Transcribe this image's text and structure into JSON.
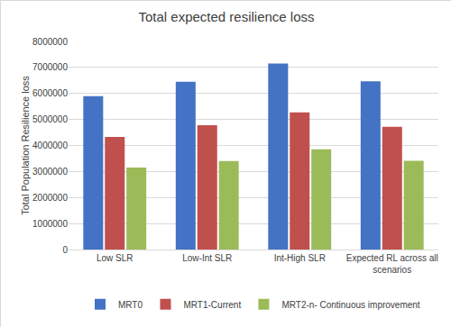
{
  "chart_data": {
    "type": "bar",
    "title": "Total expected resilience loss",
    "y_label": "Total Population Resilience loss",
    "categories": [
      "Low SLR",
      "Low-Int SLR",
      "Int-High SLR",
      "Expected RL across all scenarios"
    ],
    "series": [
      {
        "name": "MRT0",
        "color": "#4472c4",
        "values": [
          5900000,
          6450000,
          7150000,
          6470000
        ]
      },
      {
        "name": "MRT1-Current",
        "color": "#c0504d",
        "values": [
          4330000,
          4780000,
          5270000,
          4720000
        ]
      },
      {
        "name": "MRT2-n- Continuous improvement",
        "color": "#9bbb59",
        "values": [
          3150000,
          3400000,
          3850000,
          3410000
        ]
      }
    ],
    "ylim": [
      0,
      8000000
    ],
    "yticks": [
      0,
      1000000,
      2000000,
      3000000,
      4000000,
      5000000,
      6000000,
      7000000,
      8000000
    ],
    "grid": true,
    "legend": "bottom"
  }
}
